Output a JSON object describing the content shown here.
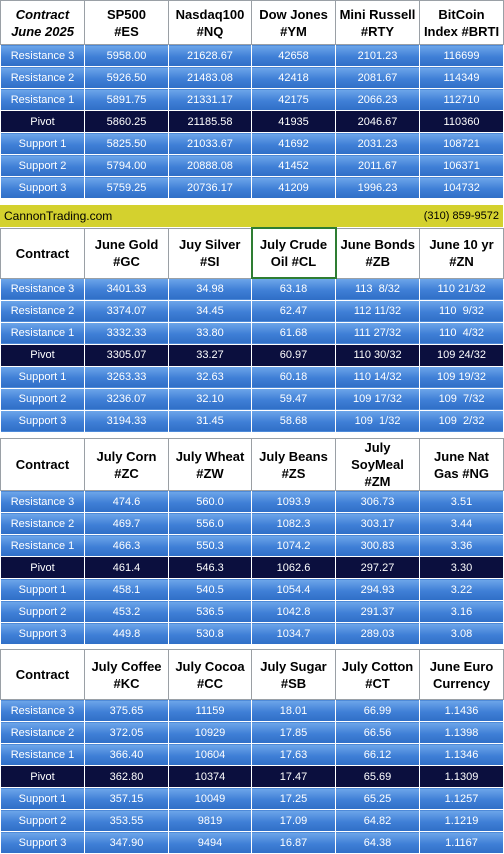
{
  "banner": {
    "site": "CannonTrading.com",
    "phone": "(310) 859-9572"
  },
  "row_labels": [
    "Resistance 3",
    "Resistance 2",
    "Resistance 1",
    "Pivot",
    "Support 1",
    "Support 2",
    "Support 3"
  ],
  "blocks": [
    {
      "corner": [
        "Contract",
        "June 2025"
      ],
      "headers": [
        [
          "SP500",
          "#ES"
        ],
        [
          "Nasdaq100",
          "#NQ"
        ],
        [
          "Dow Jones",
          "#YM"
        ],
        [
          "Mini Russell",
          "#RTY"
        ],
        [
          "BitCoin",
          "Index #BRTI"
        ]
      ],
      "rows": [
        [
          "5958.00",
          "21628.67",
          "42658",
          "2101.23",
          "116699"
        ],
        [
          "5926.50",
          "21483.08",
          "42418",
          "2081.67",
          "114349"
        ],
        [
          "5891.75",
          "21331.17",
          "42175",
          "2066.23",
          "112710"
        ],
        [
          "5860.25",
          "21185.58",
          "41935",
          "2046.67",
          "110360"
        ],
        [
          "5825.50",
          "21033.67",
          "41692",
          "2031.23",
          "108721"
        ],
        [
          "5794.00",
          "20888.08",
          "41452",
          "2011.67",
          "106371"
        ],
        [
          "5759.25",
          "20736.17",
          "41209",
          "1996.23",
          "104732"
        ]
      ]
    },
    {
      "corner": [
        "Contract"
      ],
      "headers": [
        [
          "June Gold",
          "#GC"
        ],
        [
          "Juy Silver",
          "#SI"
        ],
        [
          "July Crude",
          "Oil #CL"
        ],
        [
          "June Bonds",
          "#ZB"
        ],
        [
          "June 10 yr",
          "#ZN"
        ]
      ],
      "rows": [
        [
          "3401.33",
          "34.98",
          "63.18",
          "113  8/32",
          "110 21/32"
        ],
        [
          "3374.07",
          "34.45",
          "62.47",
          "112 11/32",
          "110  9/32"
        ],
        [
          "3332.33",
          "33.80",
          "61.68",
          "111 27/32",
          "110  4/32"
        ],
        [
          "3305.07",
          "33.27",
          "60.97",
          "110 30/32",
          "109 24/32"
        ],
        [
          "3263.33",
          "32.63",
          "60.18",
          "110 14/32",
          "109 19/32"
        ],
        [
          "3236.07",
          "32.10",
          "59.47",
          "109 17/32",
          "109  7/32"
        ],
        [
          "3194.33",
          "31.45",
          "58.68",
          "109  1/32",
          "109  2/32"
        ]
      ]
    },
    {
      "corner": [
        "Contract"
      ],
      "headers": [
        [
          "July Corn",
          "#ZC"
        ],
        [
          "July  Wheat",
          "#ZW"
        ],
        [
          "July Beans",
          "#ZS"
        ],
        [
          "July",
          "SoyMeal",
          "#ZM"
        ],
        [
          "June Nat",
          "Gas #NG"
        ]
      ],
      "rows": [
        [
          "474.6",
          "560.0",
          "1093.9",
          "306.73",
          "3.51"
        ],
        [
          "469.7",
          "556.0",
          "1082.3",
          "303.17",
          "3.44"
        ],
        [
          "466.3",
          "550.3",
          "1074.2",
          "300.83",
          "3.36"
        ],
        [
          "461.4",
          "546.3",
          "1062.6",
          "297.27",
          "3.30"
        ],
        [
          "458.1",
          "540.5",
          "1054.4",
          "294.93",
          "3.22"
        ],
        [
          "453.2",
          "536.5",
          "1042.8",
          "291.37",
          "3.16"
        ],
        [
          "449.8",
          "530.8",
          "1034.7",
          "289.03",
          "3.08"
        ]
      ]
    },
    {
      "corner": [
        "Contract"
      ],
      "headers": [
        [
          "July Coffee",
          "#KC"
        ],
        [
          "July Cocoa",
          "#CC"
        ],
        [
          "July Sugar",
          "#SB"
        ],
        [
          "July Cotton",
          "#CT"
        ],
        [
          "June Euro",
          "Currency"
        ]
      ],
      "rows": [
        [
          "375.65",
          "11159",
          "18.01",
          "66.99",
          "1.1436"
        ],
        [
          "372.05",
          "10929",
          "17.85",
          "66.56",
          "1.1398"
        ],
        [
          "366.40",
          "10604",
          "17.63",
          "66.12",
          "1.1346"
        ],
        [
          "362.80",
          "10374",
          "17.47",
          "65.69",
          "1.1309"
        ],
        [
          "357.15",
          "10049",
          "17.25",
          "65.25",
          "1.1257"
        ],
        [
          "353.55",
          "9819",
          "17.09",
          "64.82",
          "1.1219"
        ],
        [
          "347.90",
          "9494",
          "16.87",
          "64.38",
          "1.1167"
        ]
      ]
    }
  ]
}
